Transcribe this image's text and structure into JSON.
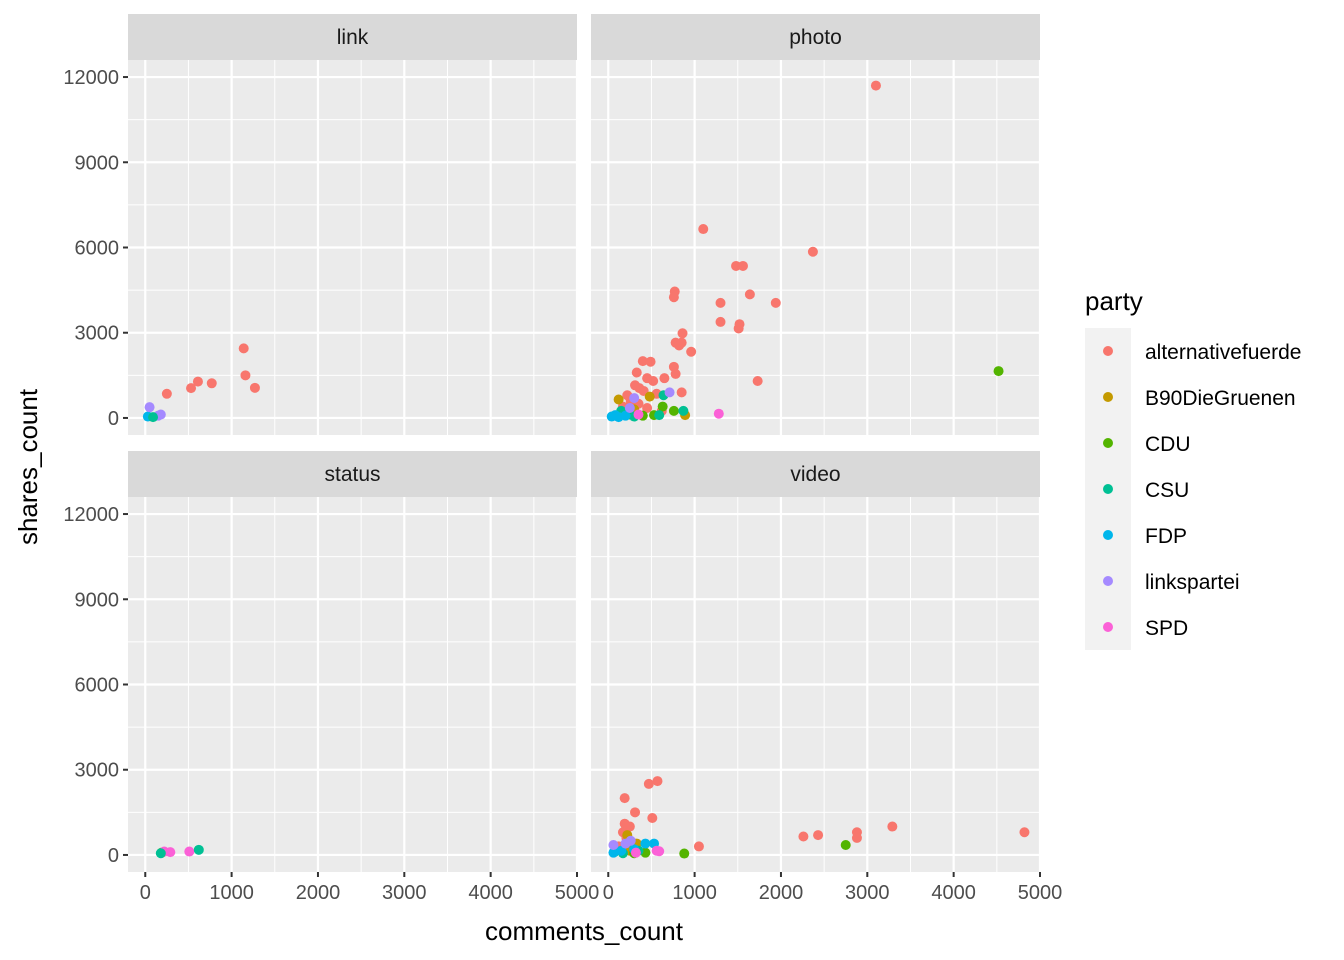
{
  "chart_data": {
    "type": "scatter",
    "xlabel": "comments_count",
    "ylabel": "shares_count",
    "xlim": [
      -200,
      5000
    ],
    "ylim": [
      -600,
      12600
    ],
    "x_ticks": [
      0,
      1000,
      2000,
      3000,
      4000,
      5000
    ],
    "y_ticks": [
      0,
      3000,
      6000,
      9000,
      12000
    ],
    "x_tick_labels": [
      "0",
      "1000",
      "2000",
      "3000",
      "4000",
      "5000"
    ],
    "y_tick_labels": [
      "0",
      "3000",
      "6000",
      "9000",
      "12000"
    ],
    "grid": true,
    "legend": {
      "title": "party",
      "position": "right",
      "entries": [
        {
          "label": "alternativefuerde",
          "color": "#F8766D"
        },
        {
          "label": "B90DieGruenen",
          "color": "#C49A00"
        },
        {
          "label": "CDU",
          "color": "#53B400"
        },
        {
          "label": "CSU",
          "color": "#00C094"
        },
        {
          "label": "FDP",
          "color": "#00B6EB"
        },
        {
          "label": "linkspartei",
          "color": "#A58AFF"
        },
        {
          "label": "SPD",
          "color": "#FB61D7"
        }
      ]
    },
    "facets": [
      {
        "name": "link",
        "points": [
          {
            "x": 250,
            "y": 850,
            "party": "alternativefuerde"
          },
          {
            "x": 530,
            "y": 1050,
            "party": "alternativefuerde"
          },
          {
            "x": 610,
            "y": 1280,
            "party": "alternativefuerde"
          },
          {
            "x": 770,
            "y": 1220,
            "party": "alternativefuerde"
          },
          {
            "x": 1140,
            "y": 2450,
            "party": "alternativefuerde"
          },
          {
            "x": 1160,
            "y": 1500,
            "party": "alternativefuerde"
          },
          {
            "x": 1270,
            "y": 1060,
            "party": "alternativefuerde"
          },
          {
            "x": 30,
            "y": 50,
            "party": "FDP"
          },
          {
            "x": 50,
            "y": 380,
            "party": "linkspartei"
          },
          {
            "x": 150,
            "y": 80,
            "party": "linkspartei"
          },
          {
            "x": 180,
            "y": 120,
            "party": "linkspartei"
          },
          {
            "x": 90,
            "y": 30,
            "party": "CSU"
          }
        ]
      },
      {
        "name": "photo",
        "points": [
          {
            "x": 3100,
            "y": 11700,
            "party": "alternativefuerde"
          },
          {
            "x": 1100,
            "y": 6650,
            "party": "alternativefuerde"
          },
          {
            "x": 2370,
            "y": 5850,
            "party": "alternativefuerde"
          },
          {
            "x": 1480,
            "y": 5350,
            "party": "alternativefuerde"
          },
          {
            "x": 1560,
            "y": 5350,
            "party": "alternativefuerde"
          },
          {
            "x": 770,
            "y": 4450,
            "party": "alternativefuerde"
          },
          {
            "x": 760,
            "y": 4250,
            "party": "alternativefuerde"
          },
          {
            "x": 1640,
            "y": 4350,
            "party": "alternativefuerde"
          },
          {
            "x": 1300,
            "y": 4050,
            "party": "alternativefuerde"
          },
          {
            "x": 1940,
            "y": 4050,
            "party": "alternativefuerde"
          },
          {
            "x": 1300,
            "y": 3380,
            "party": "alternativefuerde"
          },
          {
            "x": 1520,
            "y": 3300,
            "party": "alternativefuerde"
          },
          {
            "x": 1510,
            "y": 3150,
            "party": "alternativefuerde"
          },
          {
            "x": 860,
            "y": 2980,
            "party": "alternativefuerde"
          },
          {
            "x": 780,
            "y": 2650,
            "party": "alternativefuerde"
          },
          {
            "x": 820,
            "y": 2550,
            "party": "alternativefuerde"
          },
          {
            "x": 850,
            "y": 2650,
            "party": "alternativefuerde"
          },
          {
            "x": 960,
            "y": 2330,
            "party": "alternativefuerde"
          },
          {
            "x": 400,
            "y": 2000,
            "party": "alternativefuerde"
          },
          {
            "x": 490,
            "y": 1980,
            "party": "alternativefuerde"
          },
          {
            "x": 760,
            "y": 1800,
            "party": "alternativefuerde"
          },
          {
            "x": 780,
            "y": 1550,
            "party": "alternativefuerde"
          },
          {
            "x": 330,
            "y": 1600,
            "party": "alternativefuerde"
          },
          {
            "x": 450,
            "y": 1400,
            "party": "alternativefuerde"
          },
          {
            "x": 520,
            "y": 1300,
            "party": "alternativefuerde"
          },
          {
            "x": 650,
            "y": 1400,
            "party": "alternativefuerde"
          },
          {
            "x": 1730,
            "y": 1300,
            "party": "alternativefuerde"
          },
          {
            "x": 310,
            "y": 1150,
            "party": "alternativefuerde"
          },
          {
            "x": 360,
            "y": 1050,
            "party": "alternativefuerde"
          },
          {
            "x": 410,
            "y": 950,
            "party": "alternativefuerde"
          },
          {
            "x": 560,
            "y": 850,
            "party": "alternativefuerde"
          },
          {
            "x": 850,
            "y": 900,
            "party": "alternativefuerde"
          },
          {
            "x": 220,
            "y": 800,
            "party": "alternativefuerde"
          },
          {
            "x": 260,
            "y": 600,
            "party": "alternativefuerde"
          },
          {
            "x": 350,
            "y": 500,
            "party": "alternativefuerde"
          },
          {
            "x": 170,
            "y": 400,
            "party": "alternativefuerde"
          },
          {
            "x": 450,
            "y": 350,
            "party": "alternativefuerde"
          },
          {
            "x": 620,
            "y": 250,
            "party": "alternativefuerde"
          },
          {
            "x": 120,
            "y": 650,
            "party": "B90DieGruenen"
          },
          {
            "x": 480,
            "y": 750,
            "party": "B90DieGruenen"
          },
          {
            "x": 300,
            "y": 300,
            "party": "B90DieGruenen"
          },
          {
            "x": 890,
            "y": 100,
            "party": "B90DieGruenen"
          },
          {
            "x": 200,
            "y": 150,
            "party": "B90DieGruenen"
          },
          {
            "x": 4520,
            "y": 1650,
            "party": "CDU"
          },
          {
            "x": 630,
            "y": 400,
            "party": "CDU"
          },
          {
            "x": 760,
            "y": 250,
            "party": "CDU"
          },
          {
            "x": 530,
            "y": 100,
            "party": "CDU"
          },
          {
            "x": 250,
            "y": 120,
            "party": "CDU"
          },
          {
            "x": 400,
            "y": 80,
            "party": "CDU"
          },
          {
            "x": 870,
            "y": 250,
            "party": "CSU"
          },
          {
            "x": 640,
            "y": 800,
            "party": "CSU"
          },
          {
            "x": 590,
            "y": 100,
            "party": "CSU"
          },
          {
            "x": 150,
            "y": 250,
            "party": "CSU"
          },
          {
            "x": 300,
            "y": 50,
            "party": "CSU"
          },
          {
            "x": 40,
            "y": 50,
            "party": "FDP"
          },
          {
            "x": 80,
            "y": 100,
            "party": "FDP"
          },
          {
            "x": 120,
            "y": 30,
            "party": "FDP"
          },
          {
            "x": 200,
            "y": 80,
            "party": "FDP"
          },
          {
            "x": 300,
            "y": 700,
            "party": "linkspartei"
          },
          {
            "x": 710,
            "y": 900,
            "party": "linkspartei"
          },
          {
            "x": 250,
            "y": 350,
            "party": "linkspartei"
          },
          {
            "x": 1280,
            "y": 150,
            "party": "SPD"
          },
          {
            "x": 350,
            "y": 120,
            "party": "SPD"
          }
        ]
      },
      {
        "name": "status",
        "points": [
          {
            "x": 190,
            "y": 80,
            "party": "CDU"
          },
          {
            "x": 220,
            "y": 120,
            "party": "SPD"
          },
          {
            "x": 290,
            "y": 100,
            "party": "SPD"
          },
          {
            "x": 510,
            "y": 120,
            "party": "SPD"
          },
          {
            "x": 620,
            "y": 180,
            "party": "CSU"
          },
          {
            "x": 180,
            "y": 60,
            "party": "CSU"
          }
        ]
      },
      {
        "name": "video",
        "points": [
          {
            "x": 4820,
            "y": 800,
            "party": "alternativefuerde"
          },
          {
            "x": 3290,
            "y": 1000,
            "party": "alternativefuerde"
          },
          {
            "x": 2880,
            "y": 800,
            "party": "alternativefuerde"
          },
          {
            "x": 2880,
            "y": 600,
            "party": "alternativefuerde"
          },
          {
            "x": 2430,
            "y": 700,
            "party": "alternativefuerde"
          },
          {
            "x": 2260,
            "y": 650,
            "party": "alternativefuerde"
          },
          {
            "x": 1050,
            "y": 300,
            "party": "alternativefuerde"
          },
          {
            "x": 570,
            "y": 2600,
            "party": "alternativefuerde"
          },
          {
            "x": 470,
            "y": 2500,
            "party": "alternativefuerde"
          },
          {
            "x": 190,
            "y": 2000,
            "party": "alternativefuerde"
          },
          {
            "x": 310,
            "y": 1500,
            "party": "alternativefuerde"
          },
          {
            "x": 510,
            "y": 1300,
            "party": "alternativefuerde"
          },
          {
            "x": 190,
            "y": 1100,
            "party": "alternativefuerde"
          },
          {
            "x": 250,
            "y": 1000,
            "party": "alternativefuerde"
          },
          {
            "x": 170,
            "y": 800,
            "party": "alternativefuerde"
          },
          {
            "x": 210,
            "y": 600,
            "party": "alternativefuerde"
          },
          {
            "x": 300,
            "y": 400,
            "party": "alternativefuerde"
          },
          {
            "x": 120,
            "y": 300,
            "party": "alternativefuerde"
          },
          {
            "x": 220,
            "y": 700,
            "party": "B90DieGruenen"
          },
          {
            "x": 330,
            "y": 400,
            "party": "B90DieGruenen"
          },
          {
            "x": 250,
            "y": 150,
            "party": "B90DieGruenen"
          },
          {
            "x": 2750,
            "y": 350,
            "party": "CDU"
          },
          {
            "x": 880,
            "y": 50,
            "party": "CDU"
          },
          {
            "x": 430,
            "y": 80,
            "party": "CDU"
          },
          {
            "x": 300,
            "y": 60,
            "party": "CDU"
          },
          {
            "x": 170,
            "y": 60,
            "party": "CSU"
          },
          {
            "x": 350,
            "y": 150,
            "party": "CSU"
          },
          {
            "x": 70,
            "y": 100,
            "party": "CSU"
          },
          {
            "x": 430,
            "y": 400,
            "party": "FDP"
          },
          {
            "x": 530,
            "y": 400,
            "party": "FDP"
          },
          {
            "x": 60,
            "y": 80,
            "party": "FDP"
          },
          {
            "x": 150,
            "y": 150,
            "party": "FDP"
          },
          {
            "x": 300,
            "y": 200,
            "party": "FDP"
          },
          {
            "x": 260,
            "y": 500,
            "party": "linkspartei"
          },
          {
            "x": 60,
            "y": 350,
            "party": "linkspartei"
          },
          {
            "x": 200,
            "y": 400,
            "party": "linkspartei"
          },
          {
            "x": 560,
            "y": 150,
            "party": "SPD"
          },
          {
            "x": 590,
            "y": 130,
            "party": "SPD"
          },
          {
            "x": 320,
            "y": 80,
            "party": "SPD"
          }
        ]
      }
    ]
  }
}
